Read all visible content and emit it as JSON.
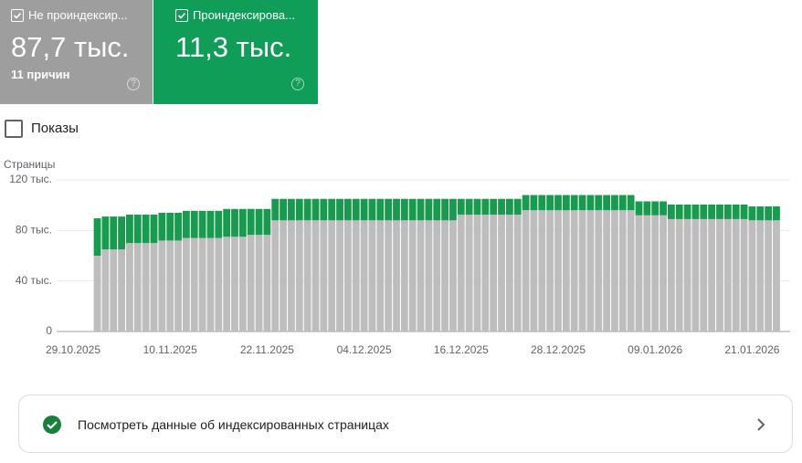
{
  "cards": [
    {
      "label": "Не проиндексир...",
      "value": "87,7 тыс.",
      "note": "11 причин"
    },
    {
      "label": "Проиндексирова...",
      "value": "11,3 тыс."
    }
  ],
  "toggle": "Показы",
  "link": "Посмотреть данные об индексированных страницах",
  "chart_data": {
    "type": "stacked-bar",
    "y_label": "Страницы",
    "categories": [
      "29.10.2025",
      null,
      null,
      null,
      null,
      null,
      null,
      null,
      null,
      null,
      null,
      null,
      "10.11.2025",
      null,
      null,
      null,
      null,
      null,
      null,
      null,
      null,
      null,
      null,
      null,
      "22.11.2025",
      null,
      null,
      null,
      null,
      null,
      null,
      null,
      null,
      null,
      null,
      null,
      "04.12.2025",
      null,
      null,
      null,
      null,
      null,
      null,
      null,
      null,
      null,
      null,
      null,
      "16.12.2025",
      null,
      null,
      null,
      null,
      null,
      null,
      null,
      null,
      null,
      null,
      null,
      "28.12.2025",
      null,
      null,
      null,
      null,
      null,
      null,
      null,
      null,
      null,
      null,
      null,
      "09.01.2026",
      null,
      null,
      null,
      null,
      null,
      null,
      null,
      null,
      null,
      null,
      null,
      "21.01.2026",
      null,
      null,
      null
    ],
    "series": [
      {
        "color": "#bdbdbd",
        "values": [
          null,
          null,
          null,
          60000,
          65000,
          65000,
          65000,
          70000,
          70000,
          70000,
          70000,
          72000,
          72000,
          72000,
          74000,
          74000,
          74000,
          74000,
          74000,
          75000,
          75000,
          75000,
          76500,
          76500,
          76500,
          88000,
          88000,
          88000,
          88000,
          88000,
          88000,
          88000,
          88000,
          88000,
          88000,
          88000,
          88000,
          88000,
          88000,
          88000,
          88000,
          88000,
          88000,
          88000,
          88000,
          88000,
          88000,
          88000,
          92500,
          92500,
          92500,
          92500,
          92500,
          92500,
          92500,
          92500,
          96000,
          96000,
          96000,
          96000,
          96000,
          96000,
          96000,
          96000,
          96000,
          96000,
          96000,
          96000,
          96000,
          96000,
          92000,
          92000,
          92000,
          92000,
          89000,
          89000,
          89000,
          89000,
          89000,
          89000,
          89000,
          89000,
          89000,
          89000,
          88000,
          88000,
          88000,
          88000
        ]
      },
      {
        "color": "#189a4f",
        "values": [
          null,
          null,
          null,
          29600,
          26000,
          26000,
          26000,
          22500,
          22500,
          22500,
          22500,
          22000,
          22000,
          22000,
          21500,
          21500,
          21500,
          21500,
          21500,
          22000,
          22000,
          22000,
          20500,
          20500,
          20500,
          17000,
          17000,
          17000,
          17000,
          17000,
          17000,
          17000,
          17000,
          17000,
          17000,
          17000,
          17000,
          17000,
          17000,
          17000,
          17000,
          17000,
          17000,
          17000,
          17000,
          17000,
          17000,
          17000,
          12500,
          12500,
          12500,
          12500,
          12500,
          12500,
          12500,
          12500,
          12000,
          12000,
          12000,
          12000,
          12000,
          12000,
          12000,
          12000,
          12000,
          12000,
          12000,
          12000,
          12000,
          12000,
          11000,
          11000,
          11000,
          11000,
          11500,
          11500,
          11500,
          11500,
          11500,
          11500,
          11500,
          11500,
          11500,
          11500,
          11000,
          11000,
          11000,
          11000
        ]
      }
    ],
    "ylim": [
      0,
      120000
    ],
    "yticks": [
      0,
      {
        "value": 40000,
        "label": "40 тыс."
      },
      {
        "value": 80000,
        "label": "80 тыс."
      },
      {
        "value": 120000,
        "label": "120 тыс."
      }
    ],
    "grid": true
  }
}
